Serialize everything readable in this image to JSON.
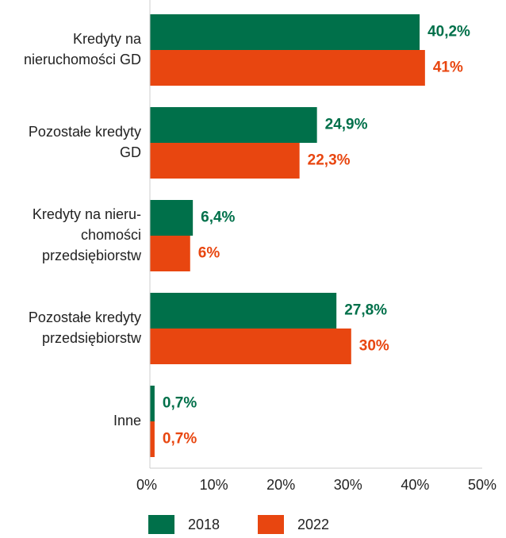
{
  "chart_data": {
    "type": "bar",
    "orientation": "horizontal",
    "categories": [
      [
        "Kredyty na",
        "nieruchomości GD"
      ],
      [
        "Pozostałe kredyty",
        "GD"
      ],
      [
        "Kredyty na nieru-",
        "chomości",
        "przedsiębiorstw"
      ],
      [
        "Pozostałe kredyty",
        "przedsiębiorstw"
      ],
      [
        "Inne"
      ]
    ],
    "series": [
      {
        "name": "2018",
        "color": "#00704a",
        "values": [
          40.2,
          24.9,
          6.4,
          27.8,
          0.7
        ],
        "value_labels": [
          "40,2%",
          "24,9%",
          "6,4%",
          "27,8%",
          "0,7%"
        ]
      },
      {
        "name": "2022",
        "color": "#e84610",
        "values": [
          41,
          22.3,
          6,
          30,
          0.7
        ],
        "value_labels": [
          "41%",
          "22,3%",
          "6%",
          "30%",
          "0,7%"
        ]
      }
    ],
    "xlim": [
      0,
      50
    ],
    "xticks": [
      {
        "value": 0,
        "label": "0%"
      },
      {
        "value": 10,
        "label": "10%"
      },
      {
        "value": 20,
        "label": "20%"
      },
      {
        "value": 30,
        "label": "30%"
      },
      {
        "value": 40,
        "label": "40%"
      },
      {
        "value": 50,
        "label": "50%"
      }
    ],
    "legend": "bottom"
  }
}
